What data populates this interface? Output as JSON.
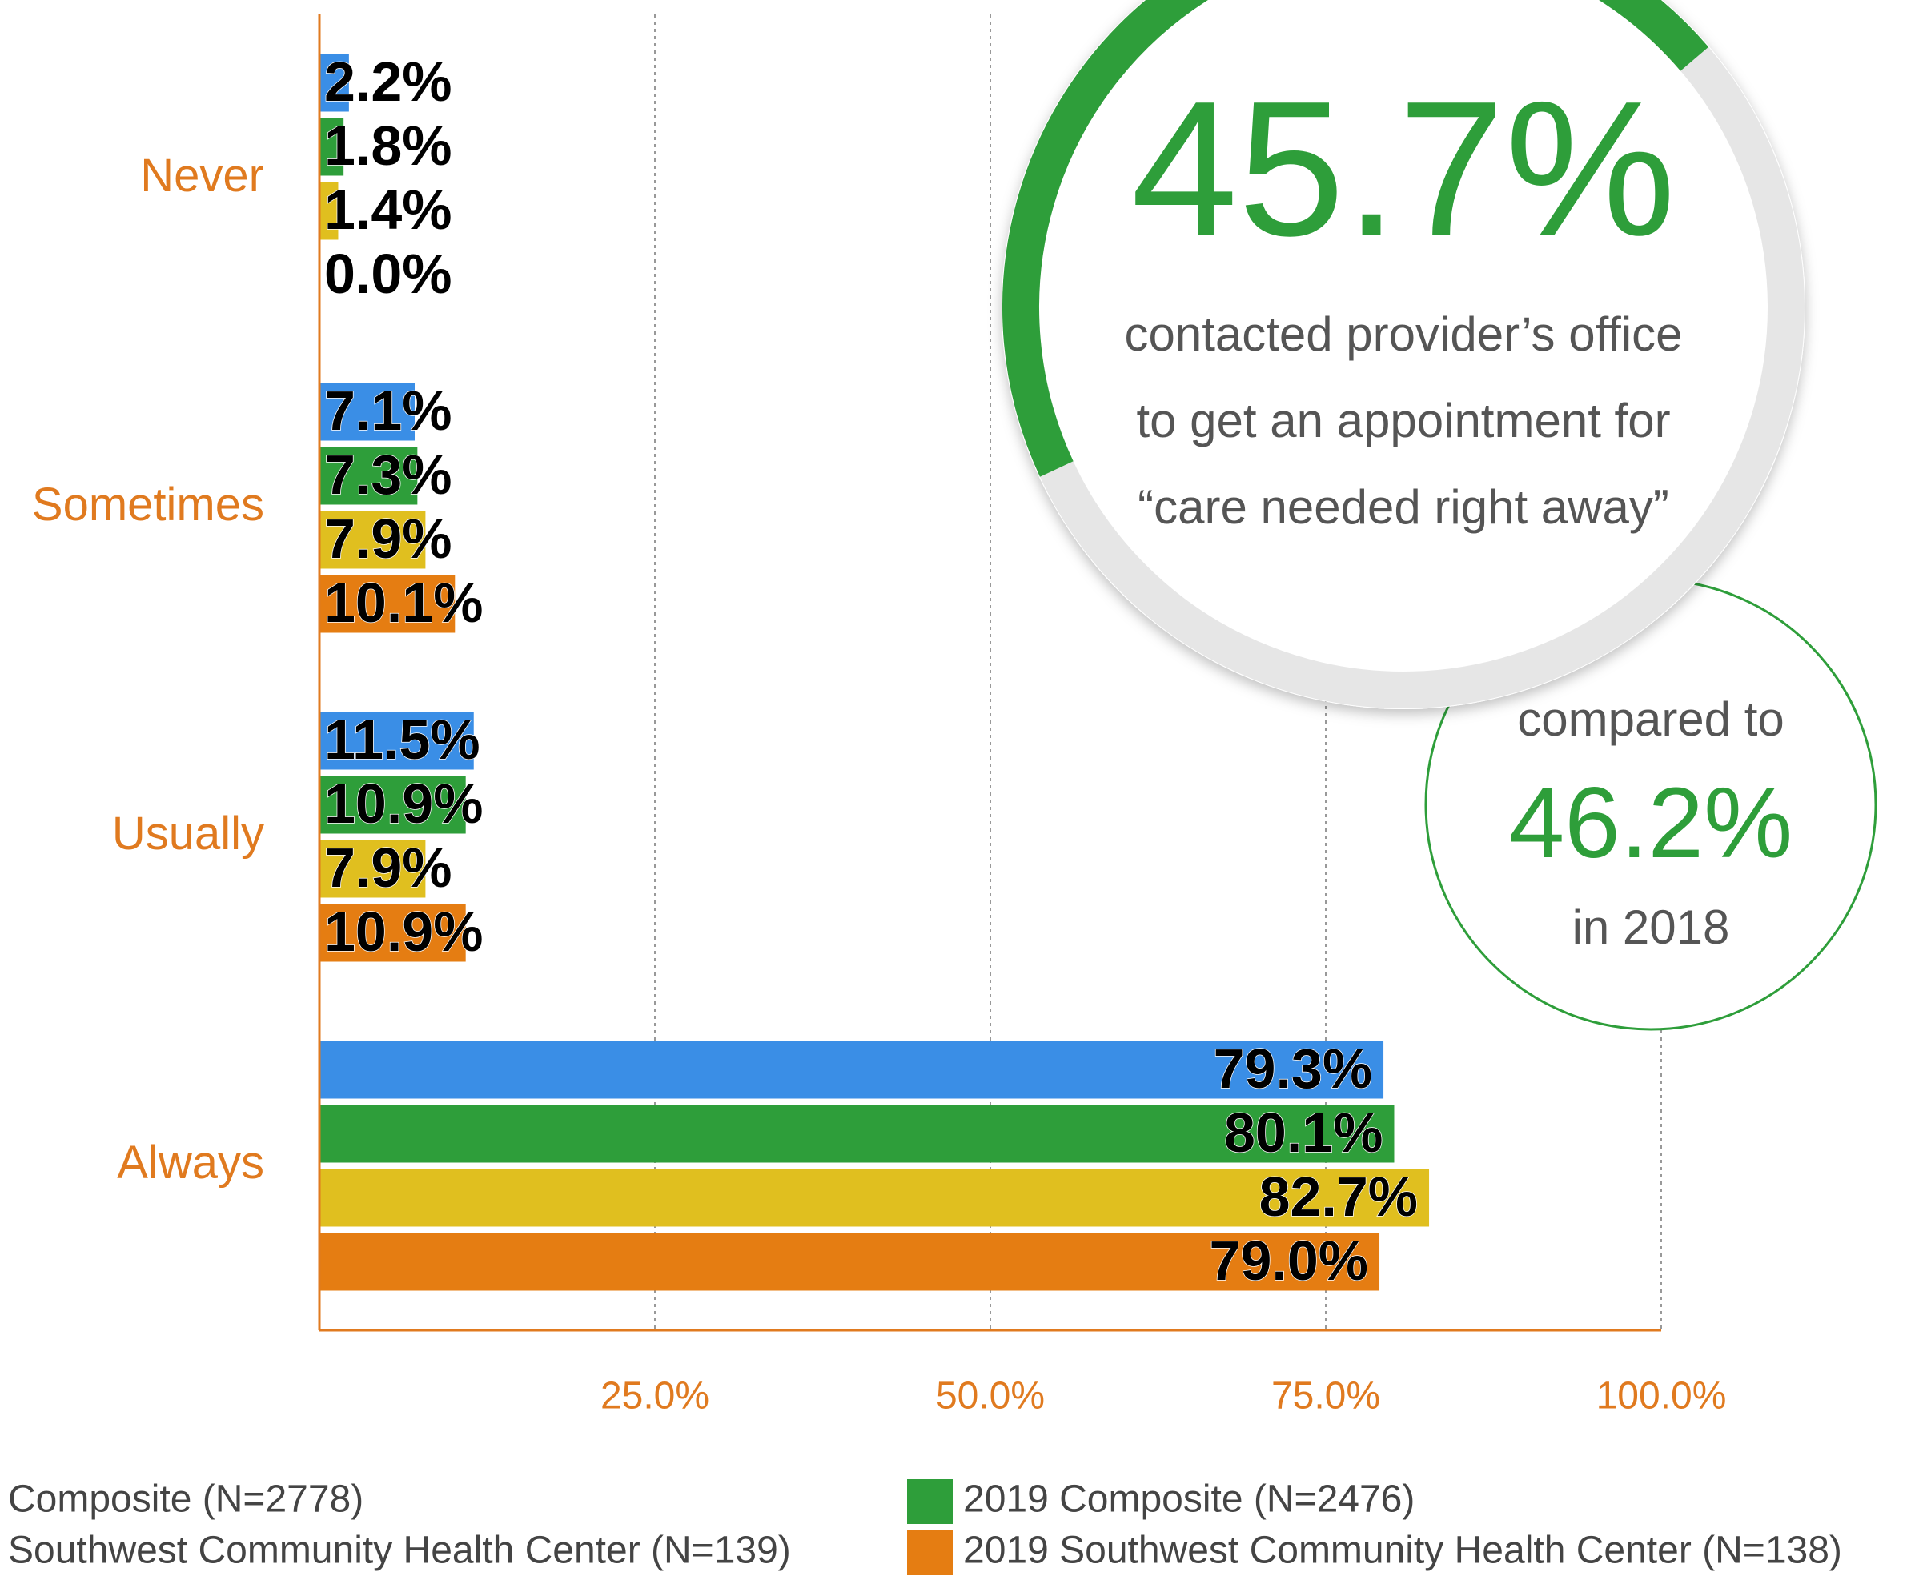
{
  "chart_data": {
    "type": "hbar",
    "categories": [
      "Never",
      "Sometimes",
      "Usually",
      "Always"
    ],
    "series": [
      {
        "name": "Composite (N=2778)",
        "color": "#3a8ee6",
        "values": [
          2.2,
          7.1,
          11.5,
          79.3
        ],
        "value_labels": [
          "2.2%",
          "7.1%",
          "11.5%",
          "79.3%"
        ]
      },
      {
        "name": "2019 Composite (N=2476)",
        "color": "#2e9e3a",
        "values": [
          1.8,
          7.3,
          10.9,
          80.1
        ],
        "value_labels": [
          "1.8%",
          "7.3%",
          "10.9%",
          "80.1%"
        ]
      },
      {
        "name": "Southwest Community Health Center (N=139)",
        "color": "#e0bf1f",
        "values": [
          1.4,
          7.9,
          7.9,
          82.7
        ],
        "value_labels": [
          "1.4%",
          "7.9%",
          "7.9%",
          "82.7%"
        ]
      },
      {
        "name": "2019 Southwest Community Health Center (N=138)",
        "color": "#e57d12",
        "values": [
          0.0,
          10.1,
          10.9,
          79.0
        ],
        "value_labels": [
          "0.0%",
          "10.1%",
          "10.9%",
          "79.0%"
        ]
      }
    ],
    "xlim": [
      0,
      100
    ],
    "xticks": [
      {
        "value": 25,
        "label": "25.0%"
      },
      {
        "value": 50,
        "label": "50.0%"
      },
      {
        "value": 75,
        "label": "75.0%"
      },
      {
        "value": 100,
        "label": "100.0%"
      }
    ],
    "grid": true,
    "gauge": {
      "value": 45.7,
      "value_label": "45.7%",
      "color": "#2e9e3a",
      "lines": [
        "contacted provider’s office",
        "to get an appointment for",
        "“care needed right away”"
      ]
    },
    "comparison": {
      "before": "compared to",
      "value": "46.2%",
      "after": "in 2018"
    }
  }
}
